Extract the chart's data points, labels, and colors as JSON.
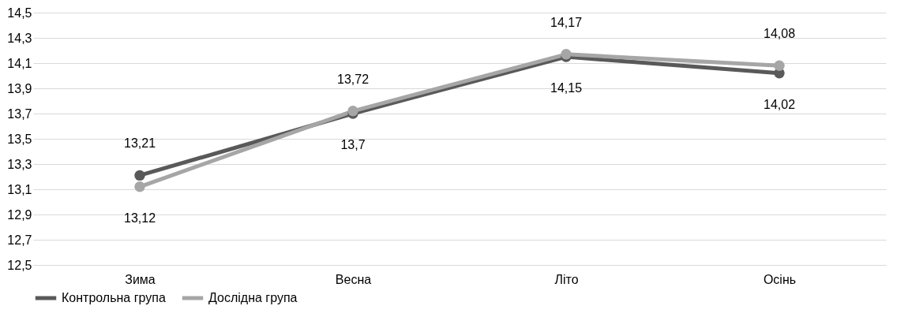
{
  "chart_data": {
    "type": "line",
    "categories": [
      "Зима",
      "Весна",
      "Літо",
      "Осінь"
    ],
    "series": [
      {
        "name": "Контрольна група",
        "color": "#595959",
        "values": [
          13.21,
          13.7,
          14.15,
          14.02
        ],
        "value_labels": [
          "13,21",
          "13,7",
          "14,15",
          "14,02"
        ],
        "line_style": "solid"
      },
      {
        "name": "Дослідна група",
        "color": "#a6a6a6",
        "values": [
          13.12,
          13.72,
          14.17,
          14.08
        ],
        "value_labels": [
          "13,12",
          "13,72",
          "14,17",
          "14,08"
        ],
        "line_style": "solid"
      }
    ],
    "ylim": [
      12.5,
      14.5
    ],
    "yticks": [
      {
        "value": 12.5,
        "label": "12,5"
      },
      {
        "value": 12.7,
        "label": "12,7"
      },
      {
        "value": 12.9,
        "label": "12,9"
      },
      {
        "value": 13.1,
        "label": "13,1"
      },
      {
        "value": 13.3,
        "label": "13,3"
      },
      {
        "value": 13.5,
        "label": "13,5"
      },
      {
        "value": 13.7,
        "label": "13,7"
      },
      {
        "value": 13.9,
        "label": "13,9"
      },
      {
        "value": 14.1,
        "label": "14,1"
      },
      {
        "value": 14.3,
        "label": "14,3"
      },
      {
        "value": 14.5,
        "label": "14,5"
      }
    ],
    "grid": "y",
    "legend": "bottom",
    "marker": "circle"
  }
}
